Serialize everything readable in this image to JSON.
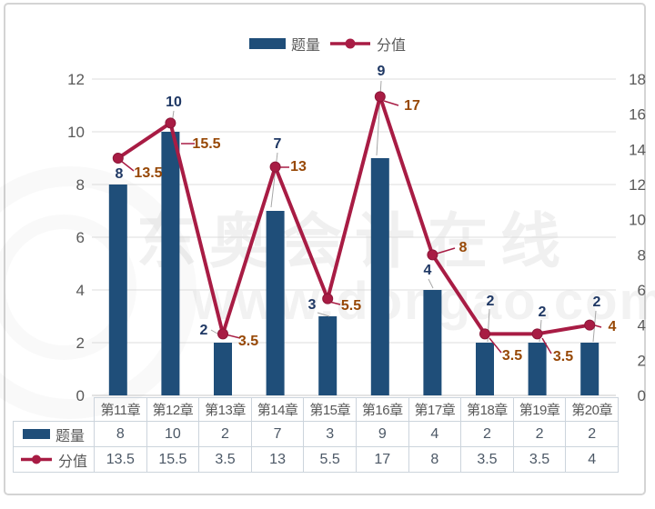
{
  "watermark": {
    "title": "东奥会计在线",
    "url": "www.dongao.com"
  },
  "chart_data": {
    "type": "bar-line-combo",
    "title": "",
    "categories": [
      "第11章",
      "第12章",
      "第13章",
      "第14章",
      "第15章",
      "第16章",
      "第17章",
      "第18章",
      "第19章",
      "第20章"
    ],
    "series": [
      {
        "name": "题量",
        "type": "bar",
        "axis": "left",
        "color": "#1f4e79",
        "label_color": "#1f3864",
        "values": [
          8,
          10,
          2,
          7,
          3,
          9,
          4,
          2,
          2,
          2
        ]
      },
      {
        "name": "分值",
        "type": "line",
        "axis": "right",
        "color": "#a81c44",
        "label_color": "#974806",
        "values": [
          13.5,
          15.5,
          3.5,
          13,
          5.5,
          17,
          8,
          3.5,
          3.5,
          4
        ]
      }
    ],
    "left_axis": {
      "min": 0,
      "max": 12,
      "step": 2,
      "ticks": [
        0,
        2,
        4,
        6,
        8,
        10,
        12
      ]
    },
    "right_axis": {
      "min": 0,
      "max": 18,
      "step": 2,
      "ticks": [
        0,
        2,
        4,
        6,
        8,
        10,
        12,
        14,
        16,
        18
      ]
    },
    "grid": true,
    "legend_position": "top-center",
    "data_table": true,
    "grid_color": "#dcdcdc",
    "axis_text_color": "#595959"
  }
}
